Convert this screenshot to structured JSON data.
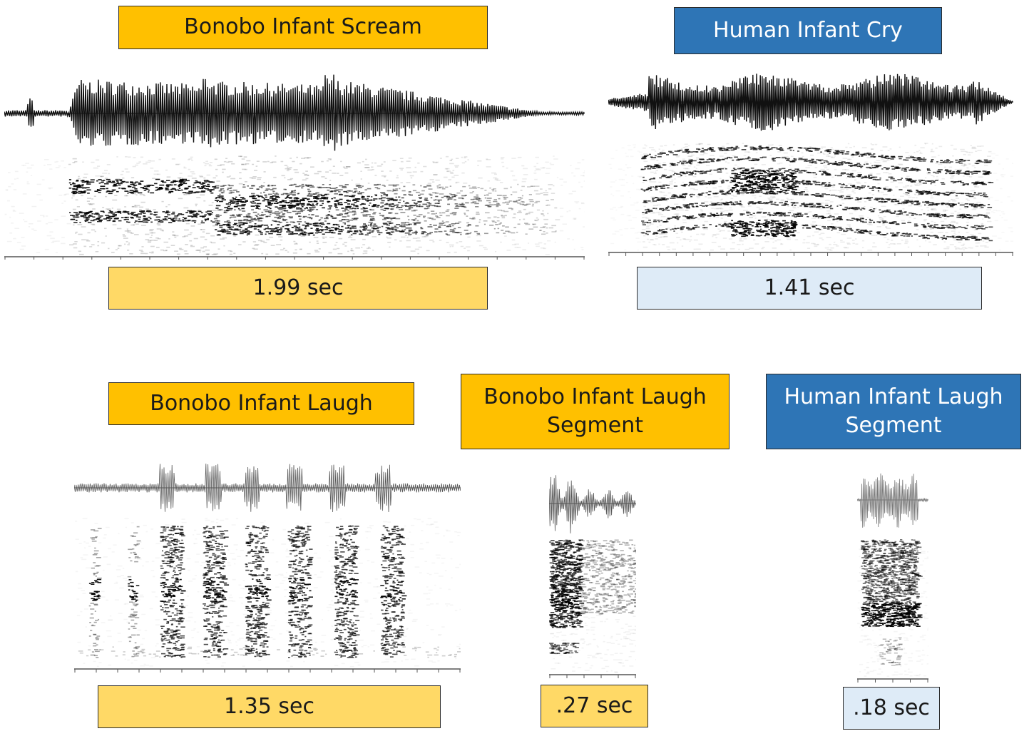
{
  "panels": [
    {
      "id": "bonobo-scream",
      "title": "Bonobo Infant Scream",
      "duration": "1.99 sec",
      "species": "bonobo"
    },
    {
      "id": "human-cry",
      "title": "Human Infant Cry",
      "duration": "1.41 sec",
      "species": "human"
    },
    {
      "id": "bonobo-laugh",
      "title": "Bonobo Infant Laugh",
      "duration": "1.35 sec",
      "species": "bonobo"
    },
    {
      "id": "bonobo-laugh-segment",
      "title": "Bonobo Infant Laugh\nSegment",
      "duration": ".27 sec",
      "species": "bonobo"
    },
    {
      "id": "human-laugh-segment",
      "title": "Human Infant Laugh\nSegment",
      "duration": ".18 sec",
      "species": "human"
    }
  ],
  "colors": {
    "bonobo_title": "#ffc000",
    "bonobo_duration": "#ffd966",
    "human_title": "#2e75b6",
    "human_duration": "#deebf7"
  }
}
